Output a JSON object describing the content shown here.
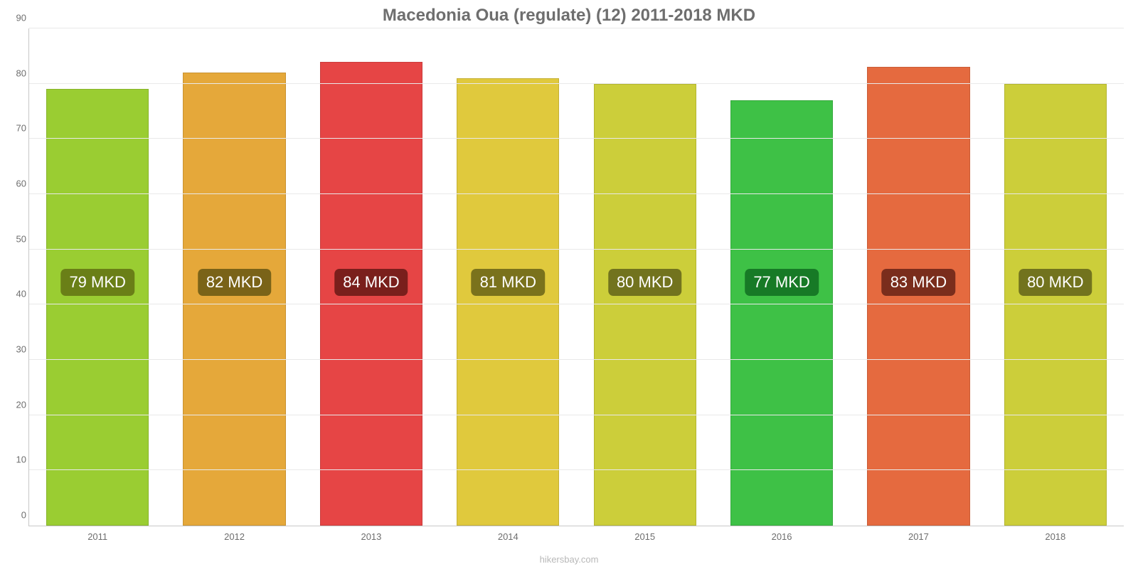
{
  "chart": {
    "type": "bar",
    "title": "Macedonia Oua (regulate) (12) 2011-2018 MKD",
    "title_fontsize": 24,
    "title_color": "#6e6e6e",
    "background_color": "#ffffff",
    "grid_color": "#e9e9e9",
    "axis_color": "#c8c8c8",
    "tick_color": "#6e6e6e",
    "tick_fontsize": 13,
    "ylim": [
      0,
      90
    ],
    "ytick_step": 10,
    "yticks": [
      "0",
      "10",
      "20",
      "30",
      "40",
      "50",
      "60",
      "70",
      "80",
      "90"
    ],
    "categories": [
      "2011",
      "2012",
      "2013",
      "2014",
      "2015",
      "2016",
      "2017",
      "2018"
    ],
    "values": [
      79,
      82,
      84,
      81,
      80,
      77,
      83,
      80
    ],
    "value_labels": [
      "79 MKD",
      "82 MKD",
      "84 MKD",
      "81 MKD",
      "80 MKD",
      "77 MKD",
      "83 MKD",
      "80 MKD"
    ],
    "bar_colors": [
      "#9acd32",
      "#e5a83a",
      "#e64545",
      "#e0c93d",
      "#ccce3a",
      "#3ec146",
      "#e56a3f",
      "#ccce3a"
    ],
    "badge_colors": [
      "#6a7f17",
      "#7a6318",
      "#7a1f1c",
      "#7a721c",
      "#72731e",
      "#177a26",
      "#7a2d1c",
      "#72731e"
    ],
    "badge_fontsize": 22,
    "badge_text_color": "#ffffff",
    "bar_width_pct": 75,
    "value_badge_y_value": 44,
    "footer": "hikersbay.com",
    "footer_fontsize": 13,
    "footer_color": "#b8b8b8"
  }
}
